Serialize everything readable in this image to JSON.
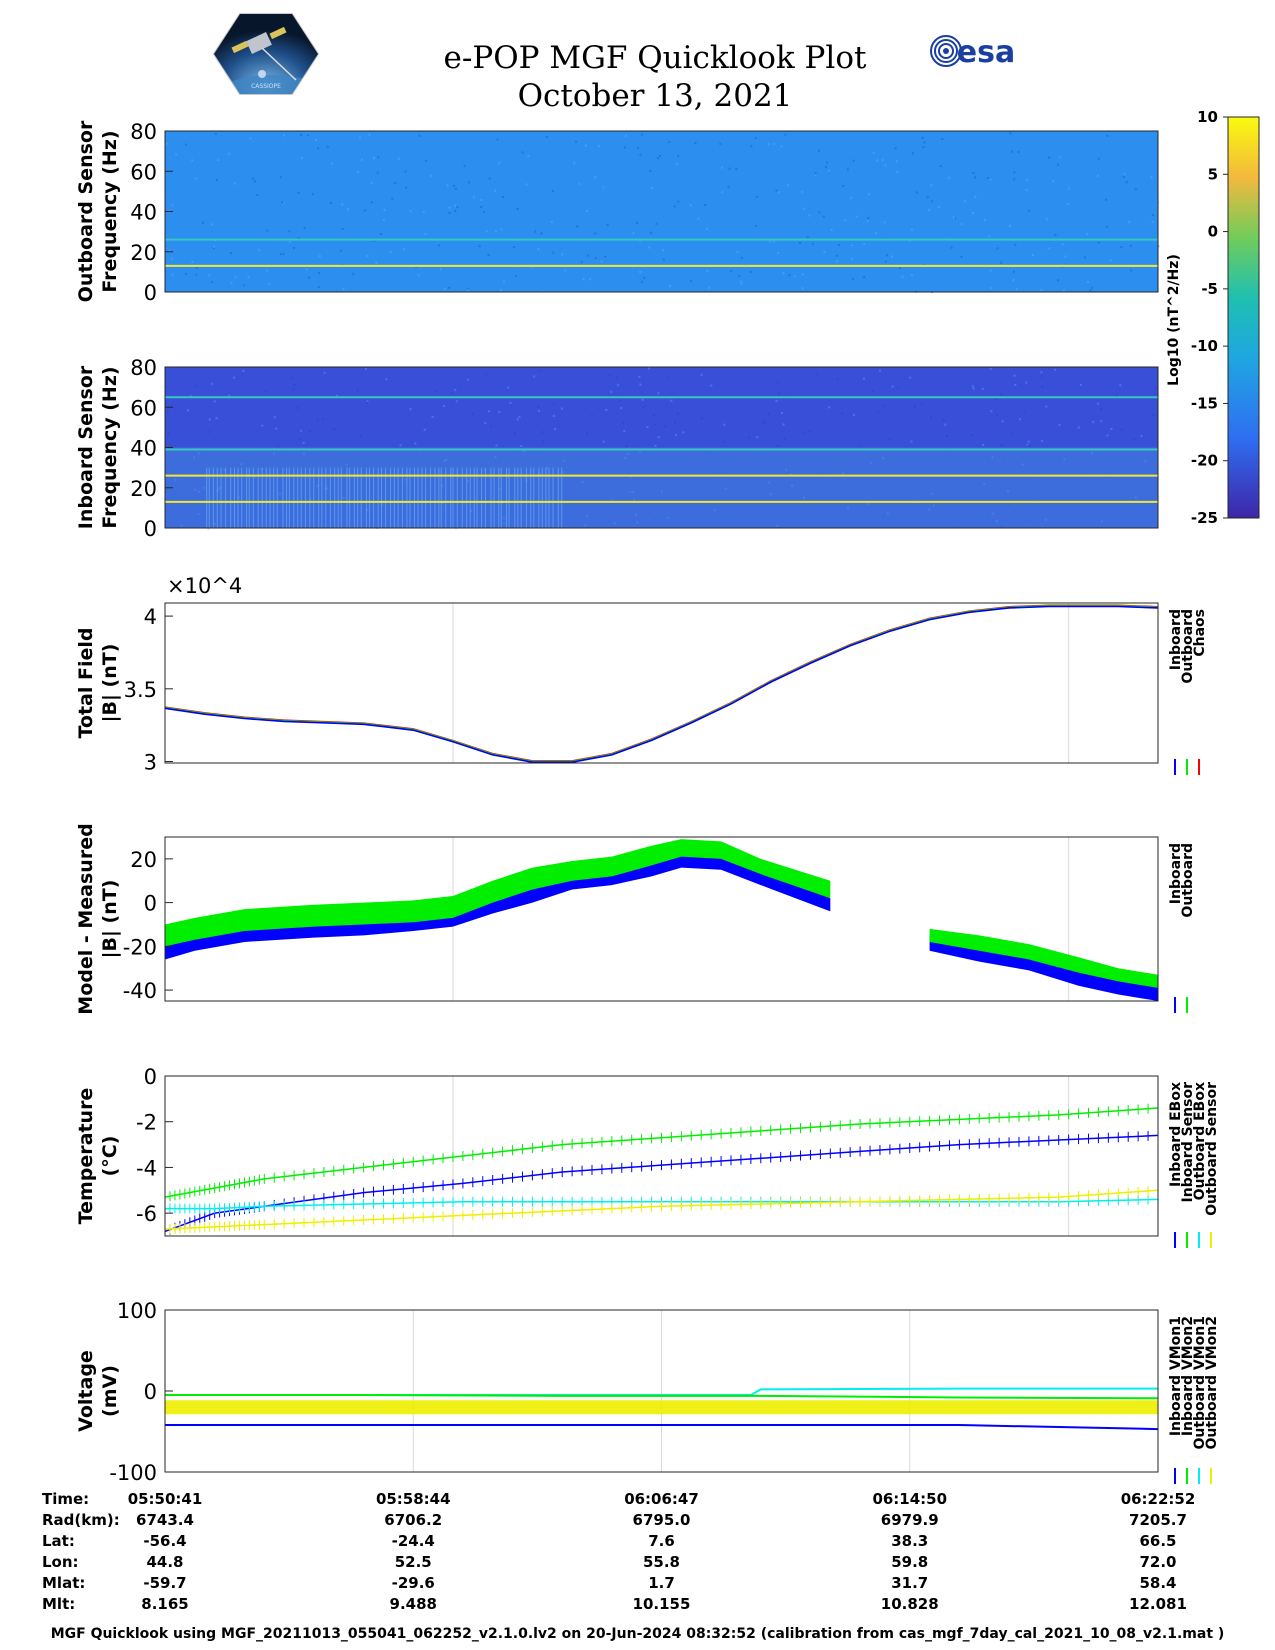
{
  "header": {
    "title": "e-POP MGF Quicklook Plot",
    "date": "October 13, 2021",
    "mission_logo_text": "CASSIOPE",
    "agency_logo_text": "esa"
  },
  "colorbar": {
    "label": "Log10 (nT^2/Hz)",
    "ticks": [
      10,
      5,
      0,
      -5,
      -10,
      -15,
      -20,
      -25
    ]
  },
  "footer": {
    "text": "MGF Quicklook using MGF_20211013_055041_062252_v2.1.0.lv2 on 20-Jun-2024 08:32:52 (calibration from cas_mgf_7day_cal_2021_10_08_v2.1.mat )"
  },
  "chart_data": [
    {
      "id": "outboard-spectrogram",
      "type": "heatmap",
      "ylabel": [
        "Outboard Sensor",
        "Frequency (Hz)"
      ],
      "ylim": [
        0,
        80
      ],
      "yticks": [
        0,
        20,
        40,
        60,
        80
      ],
      "background_color": "#2c8ff0",
      "lines": [
        {
          "freq_hz": 13,
          "color": "#f2e830"
        },
        {
          "freq_hz": 26,
          "color": "#36c8c0"
        }
      ]
    },
    {
      "id": "inboard-spectrogram",
      "type": "heatmap",
      "ylabel": [
        "Inboard Sensor",
        "Frequency (Hz)"
      ],
      "ylim": [
        0,
        80
      ],
      "yticks": [
        0,
        20,
        40,
        60,
        80
      ],
      "background_color": "#3a4fd8",
      "lines": [
        {
          "freq_hz": 13,
          "color": "#f2e830"
        },
        {
          "freq_hz": 26,
          "color": "#f2e830"
        },
        {
          "freq_hz": 39,
          "color": "#36c8c0"
        },
        {
          "freq_hz": 65,
          "color": "#36c8c0"
        }
      ]
    },
    {
      "id": "total-field",
      "type": "line",
      "ylabel": [
        "Total Field",
        "|B| (nT)"
      ],
      "ylim": [
        29900,
        40900
      ],
      "yticks": [
        3,
        3.5,
        4
      ],
      "exponent_label": "×10^4",
      "x": [
        0,
        0.04,
        0.08,
        0.12,
        0.16,
        0.2,
        0.25,
        0.29,
        0.33,
        0.37,
        0.41,
        0.45,
        0.49,
        0.53,
        0.57,
        0.61,
        0.65,
        0.69,
        0.73,
        0.77,
        0.81,
        0.85,
        0.89,
        0.93,
        0.96,
        1.0
      ],
      "series": [
        {
          "name": "Inboard",
          "color": "#0000ff",
          "values": [
            33700,
            33300,
            33000,
            32800,
            32700,
            32600,
            32200,
            31400,
            30500,
            30000,
            30000,
            30500,
            31500,
            32700,
            34000,
            35500,
            36800,
            38000,
            39000,
            39800,
            40300,
            40600,
            40700,
            40700,
            40700,
            40600
          ]
        },
        {
          "name": "Outboard",
          "color": "#00ee00",
          "values": [
            33700,
            33300,
            33000,
            32800,
            32700,
            32600,
            32200,
            31400,
            30500,
            30000,
            30000,
            30500,
            31500,
            32700,
            34000,
            35500,
            36800,
            38000,
            39000,
            39800,
            40300,
            40600,
            40700,
            40700,
            40700,
            40600
          ]
        },
        {
          "name": "Chaos",
          "color": "#ff0000",
          "values": [
            33700,
            33300,
            33000,
            32800,
            32700,
            32600,
            32200,
            31400,
            30500,
            30000,
            30000,
            30500,
            31500,
            32700,
            34000,
            35500,
            36800,
            38000,
            39000,
            39800,
            40300,
            40600,
            40700,
            40700,
            40700,
            40600
          ]
        }
      ]
    },
    {
      "id": "model-minus-measured",
      "type": "area",
      "ylabel": [
        "Model - Measured",
        "|B| (nT)"
      ],
      "ylim": [
        -45,
        30
      ],
      "yticks": [
        20,
        0,
        -20,
        -40
      ],
      "series": [
        {
          "name": "Inboard",
          "color": "#0000ff",
          "segments": [
            {
              "x": [
                0,
                0.03,
                0.08,
                0.15,
                0.2,
                0.25,
                0.29,
                0.33,
                0.37,
                0.41,
                0.45,
                0.49,
                0.52,
                0.56,
                0.6,
                0.67
              ],
              "upper": [
                -16,
                -12,
                -8,
                -6,
                -5,
                -3,
                -1,
                6,
                11,
                14,
                16,
                20,
                22,
                21,
                14,
                2
              ],
              "lower": [
                -26,
                -22,
                -18,
                -16,
                -15,
                -13,
                -11,
                -5,
                0,
                6,
                8,
                12,
                16,
                15,
                8,
                -4
              ]
            },
            {
              "x": [
                0.77,
                0.82,
                0.87,
                0.92,
                0.96,
                1.0
              ],
              "upper": [
                -15,
                -18,
                -22,
                -28,
                -33,
                -36
              ],
              "lower": [
                -22,
                -27,
                -31,
                -38,
                -42,
                -45
              ]
            }
          ]
        },
        {
          "name": "Outboard",
          "color": "#00ee00",
          "segments": [
            {
              "x": [
                0,
                0.03,
                0.08,
                0.15,
                0.2,
                0.25,
                0.29,
                0.33,
                0.37,
                0.41,
                0.45,
                0.49,
                0.52,
                0.56,
                0.6,
                0.67
              ],
              "upper": [
                -10,
                -7,
                -3,
                -1,
                0,
                1,
                3,
                10,
                16,
                19,
                21,
                26,
                29,
                28,
                20,
                10
              ],
              "lower": [
                -20,
                -17,
                -13,
                -11,
                -10,
                -9,
                -7,
                0,
                6,
                10,
                12,
                17,
                21,
                20,
                13,
                2
              ]
            },
            {
              "x": [
                0.77,
                0.82,
                0.87,
                0.92,
                0.96,
                1.0
              ],
              "upper": [
                -12,
                -15,
                -19,
                -25,
                -30,
                -33
              ],
              "lower": [
                -18,
                -22,
                -26,
                -32,
                -36,
                -39
              ]
            }
          ]
        }
      ]
    },
    {
      "id": "temperature",
      "type": "line",
      "ylabel": [
        "Temperature",
        "(°C)"
      ],
      "ylim": [
        -7,
        0
      ],
      "yticks": [
        0,
        -2,
        -4,
        -6
      ],
      "x": [
        0,
        0.05,
        0.1,
        0.2,
        0.3,
        0.4,
        0.5,
        0.6,
        0.7,
        0.8,
        0.9,
        1.0
      ],
      "series": [
        {
          "name": "Inboard EBox",
          "color": "#0000ff",
          "values": [
            -6.8,
            -6.0,
            -5.7,
            -5.1,
            -4.7,
            -4.2,
            -3.9,
            -3.6,
            -3.3,
            -3.0,
            -2.8,
            -2.6
          ]
        },
        {
          "name": "Inboard Sensor",
          "color": "#00ee00",
          "values": [
            -5.3,
            -4.9,
            -4.5,
            -4.0,
            -3.5,
            -3.0,
            -2.7,
            -2.4,
            -2.1,
            -1.9,
            -1.7,
            -1.4
          ]
        },
        {
          "name": "Outboard EBox",
          "color": "#00eeee",
          "values": [
            -5.8,
            -5.8,
            -5.7,
            -5.6,
            -5.5,
            -5.5,
            -5.5,
            -5.5,
            -5.5,
            -5.5,
            -5.5,
            -5.4
          ]
        },
        {
          "name": "Outboard Sensor",
          "color": "#eeee00",
          "values": [
            -6.7,
            -6.6,
            -6.5,
            -6.3,
            -6.1,
            -5.9,
            -5.7,
            -5.6,
            -5.5,
            -5.4,
            -5.3,
            -5.0
          ]
        }
      ]
    },
    {
      "id": "voltage",
      "type": "line",
      "ylabel": [
        "Voltage",
        "(mV)"
      ],
      "ylim": [
        -100,
        100
      ],
      "yticks": [
        100,
        0,
        -100
      ],
      "x": [
        0,
        0.2,
        0.4,
        0.59,
        0.6,
        0.8,
        1.0
      ],
      "series": [
        {
          "name": "Inboard VMon1",
          "color": "#0000ff",
          "values": [
            -42,
            -42,
            -42,
            -42,
            -42,
            -42,
            -47
          ]
        },
        {
          "name": "Inboard VMon2",
          "color": "#00ee00",
          "values": [
            -5,
            -5,
            -6,
            -6,
            -6,
            -8,
            -9
          ]
        },
        {
          "name": "Outboard VMon1",
          "color": "#00eeee",
          "values": [
            -5,
            -5,
            -5,
            -5,
            2,
            3,
            3
          ]
        },
        {
          "name": "Outboard VMon2",
          "color": "#eeee00",
          "values": [
            -20,
            -20,
            -20,
            -20,
            -20,
            -20,
            -20
          ]
        }
      ]
    }
  ],
  "time_axis": {
    "row_labels": [
      "Time:",
      "Rad(km):",
      "Lat:",
      "Lon:",
      "Mlat:",
      "Mlt:"
    ],
    "columns": [
      {
        "values": [
          "05:50:41",
          "6743.4",
          "-56.4",
          "44.8",
          "-59.7",
          "8.165"
        ]
      },
      {
        "values": [
          "05:58:44",
          "6706.2",
          "-24.4",
          "52.5",
          "-29.6",
          "9.488"
        ]
      },
      {
        "values": [
          "06:06:47",
          "6795.0",
          "7.6",
          "55.8",
          "1.7",
          "10.155"
        ]
      },
      {
        "values": [
          "06:14:50",
          "6979.9",
          "38.3",
          "59.8",
          "31.7",
          "10.828"
        ]
      },
      {
        "values": [
          "06:22:52",
          "7205.7",
          "66.5",
          "72.0",
          "58.4",
          "12.081"
        ]
      }
    ]
  }
}
